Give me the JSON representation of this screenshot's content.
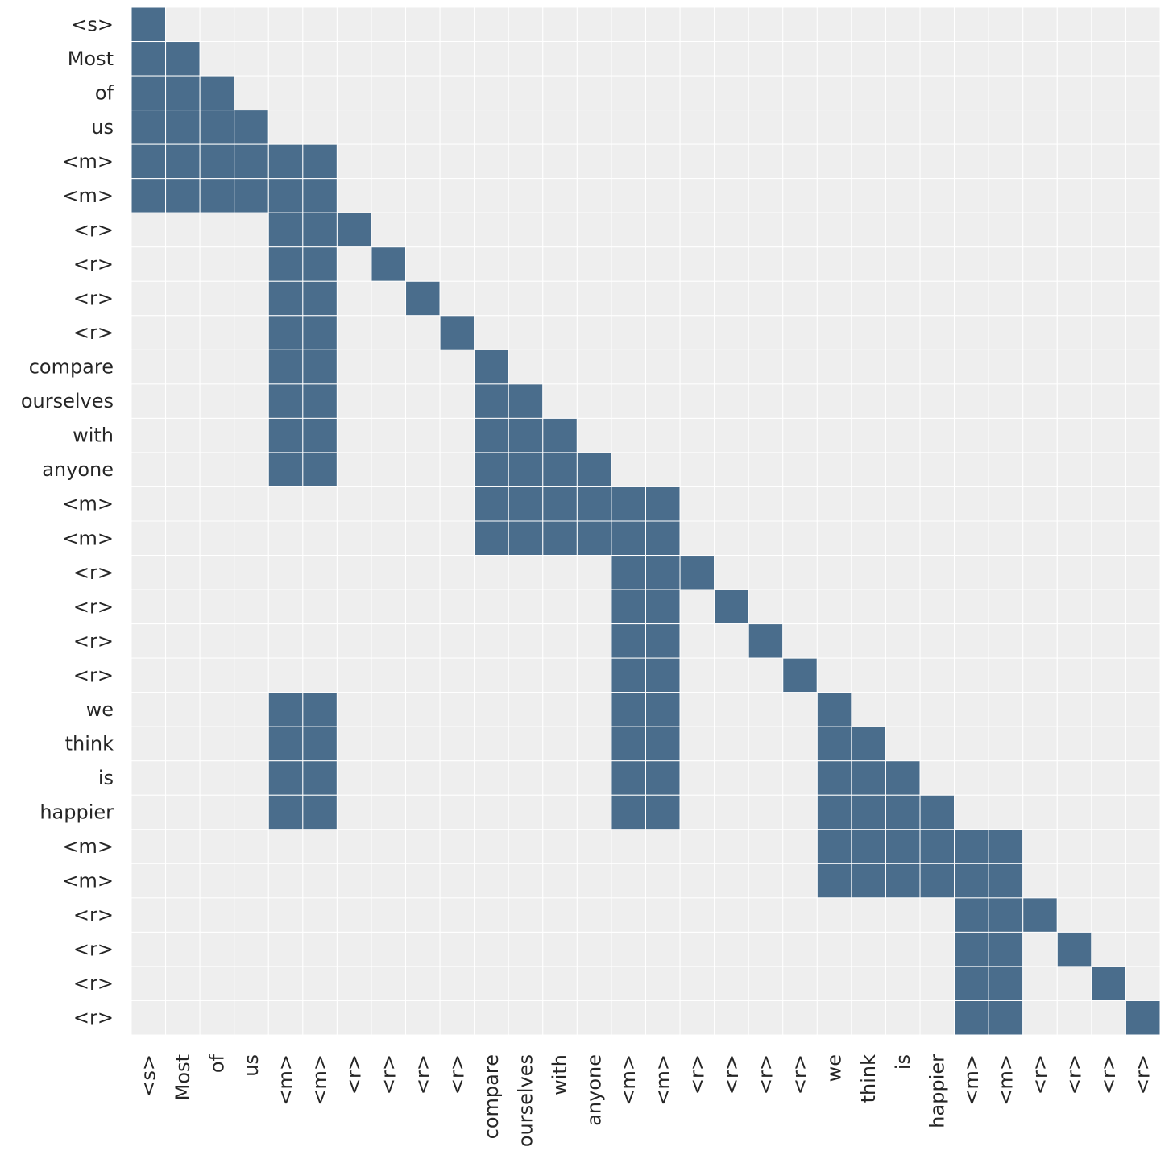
{
  "chart_data": {
    "type": "heatmap",
    "title": "",
    "xlabel": "",
    "ylabel": "",
    "tokens": [
      "<s>",
      "Most",
      "of",
      "us",
      "<m>",
      "<m>",
      "<r>",
      "<r>",
      "<r>",
      "<r>",
      "compare",
      "ourselves",
      "with",
      "anyone",
      "<m>",
      "<m>",
      "<r>",
      "<r>",
      "<r>",
      "<r>",
      "we",
      "think",
      "is",
      "happier",
      "<m>",
      "<m>",
      "<r>",
      "<r>",
      "<r>",
      "<r>"
    ],
    "x_tick_labels": [
      "<s>",
      "Most",
      "of",
      "us",
      "<m>",
      "<m>",
      "<r>",
      "<r>",
      "<r>",
      "<r>",
      "compare",
      "ourselves",
      "with",
      "anyone",
      "<m>",
      "<m>",
      "<r>",
      "<r>",
      "<r>",
      "<r>",
      "we",
      "think",
      "is",
      "happier",
      "<m>",
      "<m>",
      "<r>",
      "<r>",
      "<r>",
      "<r>"
    ],
    "y_tick_labels": [
      "<s>",
      "Most",
      "of",
      "us",
      "<m>",
      "<m>",
      "<r>",
      "<r>",
      "<r>",
      "<r>",
      "compare",
      "ourselves",
      "with",
      "anyone",
      "<m>",
      "<m>",
      "<r>",
      "<r>",
      "<r>",
      "<r>",
      "we",
      "think",
      "is",
      "happier",
      "<m>",
      "<m>",
      "<r>",
      "<r>",
      "<r>",
      "<r>"
    ],
    "value_scale": [
      0,
      1
    ],
    "colors": {
      "on": "#4a6d8c",
      "off": "#eeeeee",
      "gridline": "#ffffff"
    },
    "mask": [
      [
        1,
        0,
        0,
        0,
        0,
        0,
        0,
        0,
        0,
        0,
        0,
        0,
        0,
        0,
        0,
        0,
        0,
        0,
        0,
        0,
        0,
        0,
        0,
        0,
        0,
        0,
        0,
        0,
        0,
        0
      ],
      [
        1,
        1,
        0,
        0,
        0,
        0,
        0,
        0,
        0,
        0,
        0,
        0,
        0,
        0,
        0,
        0,
        0,
        0,
        0,
        0,
        0,
        0,
        0,
        0,
        0,
        0,
        0,
        0,
        0,
        0
      ],
      [
        1,
        1,
        1,
        0,
        0,
        0,
        0,
        0,
        0,
        0,
        0,
        0,
        0,
        0,
        0,
        0,
        0,
        0,
        0,
        0,
        0,
        0,
        0,
        0,
        0,
        0,
        0,
        0,
        0,
        0
      ],
      [
        1,
        1,
        1,
        1,
        0,
        0,
        0,
        0,
        0,
        0,
        0,
        0,
        0,
        0,
        0,
        0,
        0,
        0,
        0,
        0,
        0,
        0,
        0,
        0,
        0,
        0,
        0,
        0,
        0,
        0
      ],
      [
        1,
        1,
        1,
        1,
        1,
        1,
        0,
        0,
        0,
        0,
        0,
        0,
        0,
        0,
        0,
        0,
        0,
        0,
        0,
        0,
        0,
        0,
        0,
        0,
        0,
        0,
        0,
        0,
        0,
        0
      ],
      [
        1,
        1,
        1,
        1,
        1,
        1,
        0,
        0,
        0,
        0,
        0,
        0,
        0,
        0,
        0,
        0,
        0,
        0,
        0,
        0,
        0,
        0,
        0,
        0,
        0,
        0,
        0,
        0,
        0,
        0
      ],
      [
        0,
        0,
        0,
        0,
        1,
        1,
        1,
        0,
        0,
        0,
        0,
        0,
        0,
        0,
        0,
        0,
        0,
        0,
        0,
        0,
        0,
        0,
        0,
        0,
        0,
        0,
        0,
        0,
        0,
        0
      ],
      [
        0,
        0,
        0,
        0,
        1,
        1,
        0,
        1,
        0,
        0,
        0,
        0,
        0,
        0,
        0,
        0,
        0,
        0,
        0,
        0,
        0,
        0,
        0,
        0,
        0,
        0,
        0,
        0,
        0,
        0
      ],
      [
        0,
        0,
        0,
        0,
        1,
        1,
        0,
        0,
        1,
        0,
        0,
        0,
        0,
        0,
        0,
        0,
        0,
        0,
        0,
        0,
        0,
        0,
        0,
        0,
        0,
        0,
        0,
        0,
        0,
        0
      ],
      [
        0,
        0,
        0,
        0,
        1,
        1,
        0,
        0,
        0,
        1,
        0,
        0,
        0,
        0,
        0,
        0,
        0,
        0,
        0,
        0,
        0,
        0,
        0,
        0,
        0,
        0,
        0,
        0,
        0,
        0
      ],
      [
        0,
        0,
        0,
        0,
        1,
        1,
        0,
        0,
        0,
        0,
        1,
        0,
        0,
        0,
        0,
        0,
        0,
        0,
        0,
        0,
        0,
        0,
        0,
        0,
        0,
        0,
        0,
        0,
        0,
        0
      ],
      [
        0,
        0,
        0,
        0,
        1,
        1,
        0,
        0,
        0,
        0,
        1,
        1,
        0,
        0,
        0,
        0,
        0,
        0,
        0,
        0,
        0,
        0,
        0,
        0,
        0,
        0,
        0,
        0,
        0,
        0
      ],
      [
        0,
        0,
        0,
        0,
        1,
        1,
        0,
        0,
        0,
        0,
        1,
        1,
        1,
        0,
        0,
        0,
        0,
        0,
        0,
        0,
        0,
        0,
        0,
        0,
        0,
        0,
        0,
        0,
        0,
        0
      ],
      [
        0,
        0,
        0,
        0,
        1,
        1,
        0,
        0,
        0,
        0,
        1,
        1,
        1,
        1,
        0,
        0,
        0,
        0,
        0,
        0,
        0,
        0,
        0,
        0,
        0,
        0,
        0,
        0,
        0,
        0
      ],
      [
        0,
        0,
        0,
        0,
        0,
        0,
        0,
        0,
        0,
        0,
        1,
        1,
        1,
        1,
        1,
        1,
        0,
        0,
        0,
        0,
        0,
        0,
        0,
        0,
        0,
        0,
        0,
        0,
        0,
        0
      ],
      [
        0,
        0,
        0,
        0,
        0,
        0,
        0,
        0,
        0,
        0,
        1,
        1,
        1,
        1,
        1,
        1,
        0,
        0,
        0,
        0,
        0,
        0,
        0,
        0,
        0,
        0,
        0,
        0,
        0,
        0
      ],
      [
        0,
        0,
        0,
        0,
        0,
        0,
        0,
        0,
        0,
        0,
        0,
        0,
        0,
        0,
        1,
        1,
        1,
        0,
        0,
        0,
        0,
        0,
        0,
        0,
        0,
        0,
        0,
        0,
        0,
        0
      ],
      [
        0,
        0,
        0,
        0,
        0,
        0,
        0,
        0,
        0,
        0,
        0,
        0,
        0,
        0,
        1,
        1,
        0,
        1,
        0,
        0,
        0,
        0,
        0,
        0,
        0,
        0,
        0,
        0,
        0,
        0
      ],
      [
        0,
        0,
        0,
        0,
        0,
        0,
        0,
        0,
        0,
        0,
        0,
        0,
        0,
        0,
        1,
        1,
        0,
        0,
        1,
        0,
        0,
        0,
        0,
        0,
        0,
        0,
        0,
        0,
        0,
        0
      ],
      [
        0,
        0,
        0,
        0,
        0,
        0,
        0,
        0,
        0,
        0,
        0,
        0,
        0,
        0,
        1,
        1,
        0,
        0,
        0,
        1,
        0,
        0,
        0,
        0,
        0,
        0,
        0,
        0,
        0,
        0
      ],
      [
        0,
        0,
        0,
        0,
        1,
        1,
        0,
        0,
        0,
        0,
        0,
        0,
        0,
        0,
        1,
        1,
        0,
        0,
        0,
        0,
        1,
        0,
        0,
        0,
        0,
        0,
        0,
        0,
        0,
        0
      ],
      [
        0,
        0,
        0,
        0,
        1,
        1,
        0,
        0,
        0,
        0,
        0,
        0,
        0,
        0,
        1,
        1,
        0,
        0,
        0,
        0,
        1,
        1,
        0,
        0,
        0,
        0,
        0,
        0,
        0,
        0
      ],
      [
        0,
        0,
        0,
        0,
        1,
        1,
        0,
        0,
        0,
        0,
        0,
        0,
        0,
        0,
        1,
        1,
        0,
        0,
        0,
        0,
        1,
        1,
        1,
        0,
        0,
        0,
        0,
        0,
        0,
        0
      ],
      [
        0,
        0,
        0,
        0,
        1,
        1,
        0,
        0,
        0,
        0,
        0,
        0,
        0,
        0,
        1,
        1,
        0,
        0,
        0,
        0,
        1,
        1,
        1,
        1,
        0,
        0,
        0,
        0,
        0,
        0
      ],
      [
        0,
        0,
        0,
        0,
        0,
        0,
        0,
        0,
        0,
        0,
        0,
        0,
        0,
        0,
        0,
        0,
        0,
        0,
        0,
        0,
        1,
        1,
        1,
        1,
        1,
        1,
        0,
        0,
        0,
        0
      ],
      [
        0,
        0,
        0,
        0,
        0,
        0,
        0,
        0,
        0,
        0,
        0,
        0,
        0,
        0,
        0,
        0,
        0,
        0,
        0,
        0,
        1,
        1,
        1,
        1,
        1,
        1,
        0,
        0,
        0,
        0
      ],
      [
        0,
        0,
        0,
        0,
        0,
        0,
        0,
        0,
        0,
        0,
        0,
        0,
        0,
        0,
        0,
        0,
        0,
        0,
        0,
        0,
        0,
        0,
        0,
        0,
        1,
        1,
        1,
        0,
        0,
        0
      ],
      [
        0,
        0,
        0,
        0,
        0,
        0,
        0,
        0,
        0,
        0,
        0,
        0,
        0,
        0,
        0,
        0,
        0,
        0,
        0,
        0,
        0,
        0,
        0,
        0,
        1,
        1,
        0,
        1,
        0,
        0
      ],
      [
        0,
        0,
        0,
        0,
        0,
        0,
        0,
        0,
        0,
        0,
        0,
        0,
        0,
        0,
        0,
        0,
        0,
        0,
        0,
        0,
        0,
        0,
        0,
        0,
        1,
        1,
        0,
        0,
        1,
        0
      ],
      [
        0,
        0,
        0,
        0,
        0,
        0,
        0,
        0,
        0,
        0,
        0,
        0,
        0,
        0,
        0,
        0,
        0,
        0,
        0,
        0,
        0,
        0,
        0,
        0,
        1,
        1,
        0,
        0,
        0,
        1
      ]
    ]
  }
}
